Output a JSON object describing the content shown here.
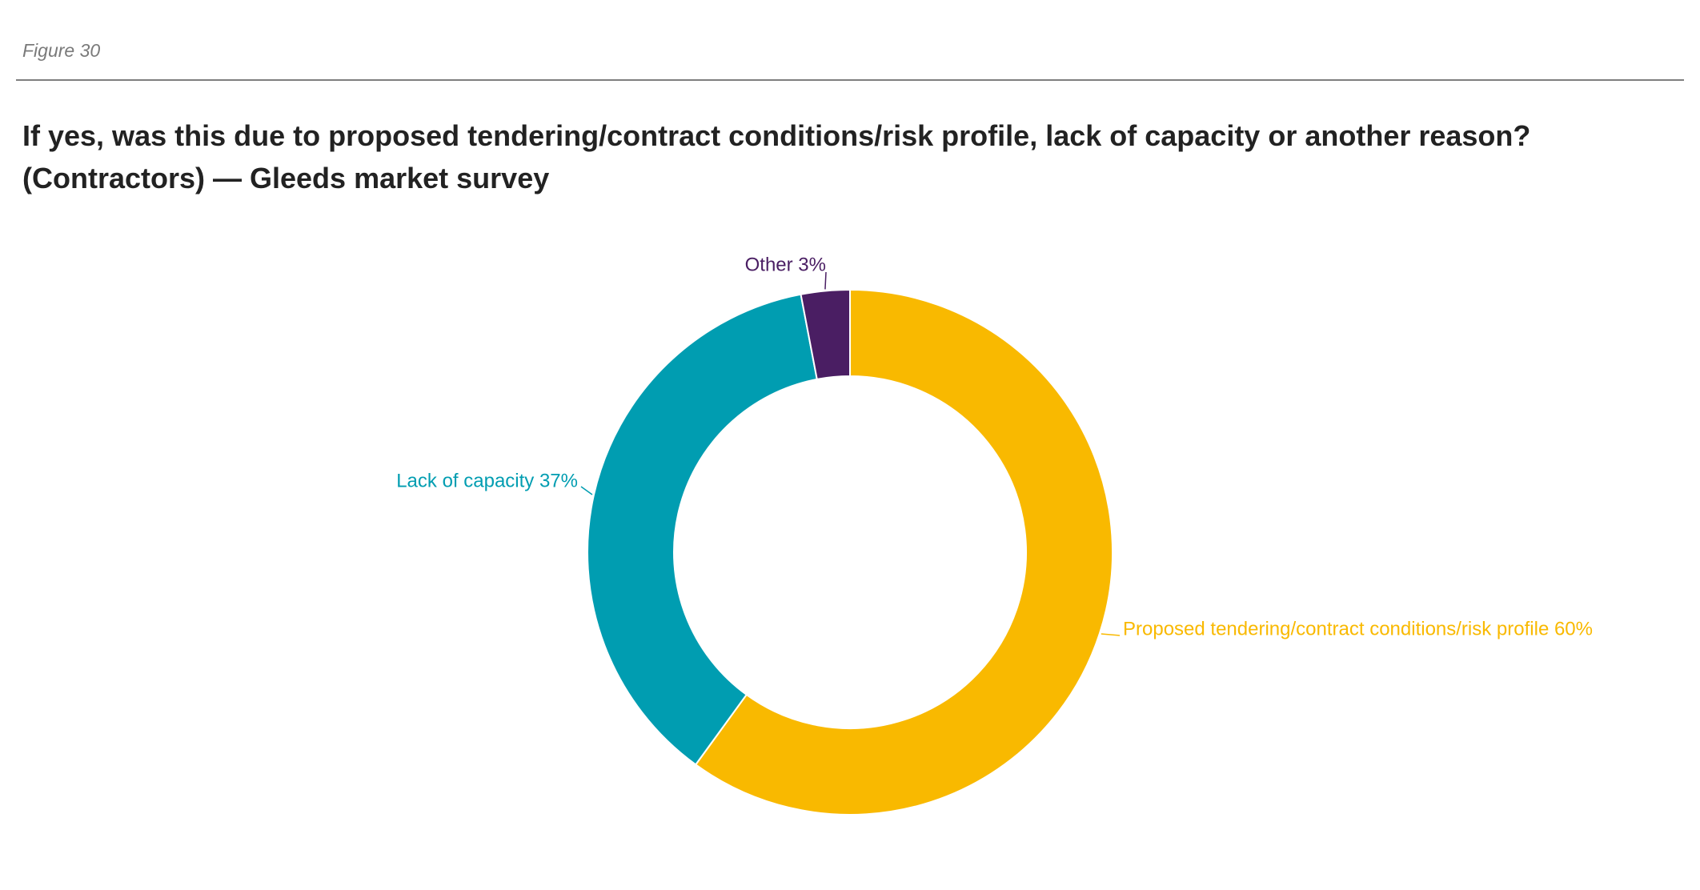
{
  "figure": {
    "label": "Figure 30",
    "title": "If yes, was this due to proposed tendering/contract conditions/risk profile, lack of capacity or another reason? (Contractors) — Gleeds market survey"
  },
  "chart_data": {
    "type": "pie",
    "style": "donut",
    "title": "If yes, was this due to proposed tendering/contract conditions/risk profile, lack of capacity or another reason? (Contractors) — Gleeds market survey",
    "legend": "none (labels beside slices)",
    "slices": [
      {
        "label": "Proposed tendering/contract conditions/risk profile",
        "value": 60,
        "display": "Proposed tendering/contract conditions/risk profile 60%",
        "color": "#F9B900"
      },
      {
        "label": "Lack of capacity",
        "value": 37,
        "display": "Lack of capacity 37%",
        "color": "#009DB1"
      },
      {
        "label": "Other",
        "value": 3,
        "display": "Other 3%",
        "color": "#4A1E63"
      }
    ]
  }
}
